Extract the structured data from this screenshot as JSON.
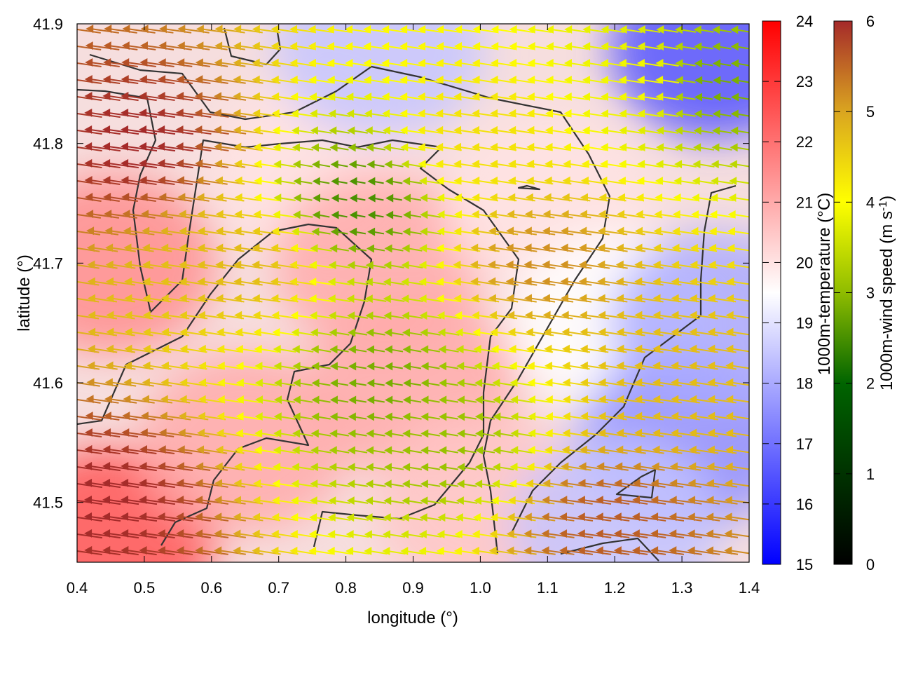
{
  "chart_data": {
    "type": "heatmap",
    "overlays": [
      "vector-field",
      "contour"
    ],
    "xlabel": "longitude (°)",
    "ylabel": "latitude (°)",
    "xlim": [
      0.4,
      1.4
    ],
    "ylim": [
      41.45,
      41.9
    ],
    "x_ticks": [
      "0.4",
      "0.5",
      "0.6",
      "0.7",
      "0.8",
      "0.9",
      "1.0",
      "1.1",
      "1.2",
      "1.3",
      "1.4"
    ],
    "y_ticks": [
      "41.5",
      "41.6",
      "41.7",
      "41.8",
      "41.9"
    ],
    "grid": false,
    "colorbars": [
      {
        "label": "1000m-temperature (°C)",
        "range": [
          15,
          24
        ],
        "ticks": [
          "15",
          "16",
          "17",
          "18",
          "19",
          "20",
          "21",
          "22",
          "23",
          "24"
        ],
        "colors": [
          "#0000ff",
          "#ffffff",
          "#ff0000"
        ]
      },
      {
        "label": "1000m-wind speed (m s-1)",
        "label_base": "1000m-wind speed (m s",
        "label_sup": "-1",
        "label_end": ")",
        "range": [
          0,
          6
        ],
        "ticks": [
          "0",
          "1",
          "2",
          "3",
          "4",
          "5",
          "6"
        ],
        "colors": [
          "#000000",
          "#006400",
          "#8fbc00",
          "#ffff00",
          "#daa520",
          "#a52a2a"
        ]
      }
    ],
    "temperature_field_samples": [
      {
        "lon": 0.45,
        "lat": 41.47,
        "value": 22.5
      },
      {
        "lon": 0.45,
        "lat": 41.7,
        "value": 21.5
      },
      {
        "lon": 0.65,
        "lat": 41.55,
        "value": 21.0
      },
      {
        "lon": 0.75,
        "lat": 41.78,
        "value": 20.0
      },
      {
        "lon": 0.85,
        "lat": 41.7,
        "value": 21.0
      },
      {
        "lon": 0.9,
        "lat": 41.6,
        "value": 21.0
      },
      {
        "lon": 1.0,
        "lat": 41.5,
        "value": 20.5
      },
      {
        "lon": 0.85,
        "lat": 41.88,
        "value": 18.5
      },
      {
        "lon": 1.1,
        "lat": 41.75,
        "value": 20.0
      },
      {
        "lon": 1.2,
        "lat": 41.65,
        "value": 19.5
      },
      {
        "lon": 1.3,
        "lat": 41.55,
        "value": 17.5
      },
      {
        "lon": 1.35,
        "lat": 41.88,
        "value": 16.5
      },
      {
        "lon": 1.35,
        "lat": 41.65,
        "value": 18.0
      },
      {
        "lon": 1.2,
        "lat": 41.48,
        "value": 18.5
      }
    ],
    "wind_field_samples": [
      {
        "lon": 0.45,
        "lat": 41.5,
        "speed": 6.0,
        "direction": "west"
      },
      {
        "lon": 0.5,
        "lat": 41.8,
        "speed": 6.0,
        "direction": "west"
      },
      {
        "lon": 0.65,
        "lat": 41.7,
        "speed": 4.5,
        "direction": "west"
      },
      {
        "lon": 0.82,
        "lat": 41.75,
        "speed": 1.8,
        "direction": "west"
      },
      {
        "lon": 0.85,
        "lat": 41.6,
        "speed": 2.2,
        "direction": "west"
      },
      {
        "lon": 0.95,
        "lat": 41.55,
        "speed": 2.5,
        "direction": "west"
      },
      {
        "lon": 1.0,
        "lat": 41.8,
        "speed": 4.0,
        "direction": "west"
      },
      {
        "lon": 1.1,
        "lat": 41.7,
        "speed": 5.0,
        "direction": "west"
      },
      {
        "lon": 1.25,
        "lat": 41.85,
        "speed": 3.5,
        "direction": "west"
      },
      {
        "lon": 1.35,
        "lat": 41.85,
        "speed": 2.2,
        "direction": "west"
      },
      {
        "lon": 1.3,
        "lat": 41.6,
        "speed": 4.5,
        "direction": "west"
      },
      {
        "lon": 1.2,
        "lat": 41.48,
        "speed": 5.5,
        "direction": "west"
      }
    ]
  }
}
